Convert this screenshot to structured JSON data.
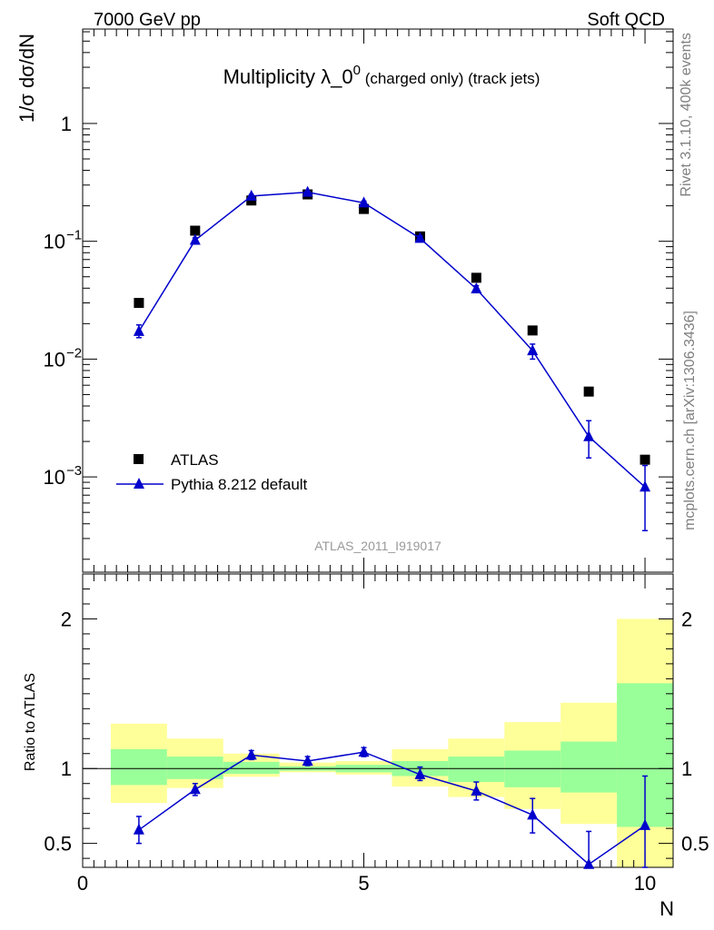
{
  "header": {
    "left": "7000 GeV pp",
    "right": "Soft QCD"
  },
  "side": {
    "top": "Rivet 3.1.10,  400k events",
    "bottom": "mcplots.cern.ch [arXiv:1306.3436]"
  },
  "analysis_tag": "ATLAS_2011_I919017",
  "colors": {
    "mc": "#0000cc",
    "data": "#000000",
    "band_inner": "#99ff99",
    "band_outer": "#ffff99"
  },
  "chart_data": [
    {
      "type": "scatter",
      "title_main": "Multiplicity λ_0",
      "title_sup": "0",
      "title_sub": " (charged only) (track jets)",
      "ylabel": "1/σ dσ/dN",
      "yscale": "log",
      "xlim": [
        0,
        10.5
      ],
      "ylim": [
        0.00015,
        6
      ],
      "ytick_labels": [
        "1",
        "10",
        "10",
        "10"
      ],
      "ytick_exps": [
        "",
        "−1",
        "−2",
        "−3"
      ],
      "x": [
        1,
        2,
        3,
        4,
        5,
        6,
        7,
        8,
        9,
        10
      ],
      "legend_position": "bottom-left",
      "series": [
        {
          "name": "ATLAS",
          "style": "square",
          "values": [
            0.03,
            0.123,
            0.222,
            0.25,
            0.188,
            0.11,
            0.049,
            0.0175,
            0.0053,
            0.0014
          ]
        },
        {
          "name": "Pythia 8.212 default",
          "style": "triangle-line",
          "values": [
            0.0172,
            0.102,
            0.242,
            0.261,
            0.212,
            0.106,
            0.0395,
            0.0118,
            0.0022,
            0.00082
          ],
          "err_lo": [
            0.0152,
            0.097,
            0.235,
            0.255,
            0.205,
            0.101,
            0.037,
            0.01,
            0.00145,
            0.00035
          ],
          "err_hi": [
            0.0195,
            0.107,
            0.249,
            0.267,
            0.219,
            0.111,
            0.042,
            0.0134,
            0.003,
            0.00125
          ]
        }
      ]
    },
    {
      "type": "line",
      "ylabel": "Ratio to ATLAS",
      "xlabel": "N",
      "xlim": [
        0,
        10.5
      ],
      "ylim": [
        0.34,
        2.3
      ],
      "yticks": [
        0.5,
        1,
        2
      ],
      "ytick_labels": [
        "0.5",
        "1",
        "2"
      ],
      "xticks": [
        0,
        5,
        10
      ],
      "xtick_labels": [
        "0",
        "5",
        "10"
      ],
      "bins": [
        [
          0.5,
          1.5
        ],
        [
          1.5,
          2.5
        ],
        [
          2.5,
          3.5
        ],
        [
          3.5,
          4.5
        ],
        [
          4.5,
          5.5
        ],
        [
          5.5,
          6.5
        ],
        [
          6.5,
          7.5
        ],
        [
          7.5,
          8.5
        ],
        [
          8.5,
          9.5
        ],
        [
          9.5,
          10.5
        ]
      ],
      "band_inner_lo": [
        0.89,
        0.93,
        0.965,
        0.985,
        0.975,
        0.95,
        0.91,
        0.875,
        0.84,
        0.61
      ],
      "band_inner_hi": [
        1.13,
        1.08,
        1.045,
        1.015,
        1.025,
        1.05,
        1.08,
        1.12,
        1.18,
        1.57
      ],
      "band_outer_lo": [
        0.77,
        0.87,
        0.945,
        0.975,
        0.96,
        0.88,
        0.81,
        0.73,
        0.63,
        0.34
      ],
      "band_outer_hi": [
        1.3,
        1.2,
        1.1,
        1.04,
        1.05,
        1.13,
        1.2,
        1.31,
        1.44,
        2.0
      ],
      "x": [
        1,
        2,
        3,
        4,
        5,
        6,
        7,
        8,
        9,
        10
      ],
      "series": [
        {
          "name": "Pythia 8.212 default",
          "values": [
            0.59,
            0.86,
            1.09,
            1.05,
            1.11,
            0.96,
            0.85,
            0.69,
            0.36,
            0.62
          ],
          "err_lo": [
            0.5,
            0.82,
            1.06,
            1.02,
            1.08,
            0.92,
            0.79,
            0.57,
            0.34,
            0.34
          ],
          "err_hi": [
            0.68,
            0.9,
            1.12,
            1.08,
            1.14,
            1.01,
            0.91,
            0.8,
            0.58,
            0.95
          ]
        }
      ]
    }
  ]
}
